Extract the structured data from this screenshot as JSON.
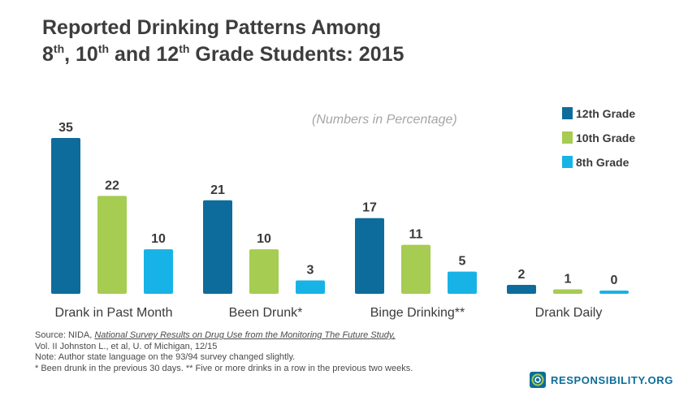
{
  "title": {
    "line1": "Reported Drinking Patterns Among",
    "g8": "8",
    "g8_sup": "th",
    "sep1": ", ",
    "g10": "10",
    "g10_sup": "th",
    "sep2": " and ",
    "g12": "12",
    "g12_sup": "th",
    "rest": " Grade Students: 2015"
  },
  "chart_data": {
    "type": "bar",
    "title": "Reported Drinking Patterns Among 8th, 10th and 12th Grade Students: 2015",
    "annotation": "(Numbers in Percentage)",
    "categories": [
      "Drank in Past Month",
      "Been Drunk*",
      "Binge Drinking**",
      "Drank Daily"
    ],
    "series": [
      {
        "name": "12th Grade",
        "color": "#0e6c9c",
        "values": [
          35,
          21,
          17,
          2
        ]
      },
      {
        "name": "10th Grade",
        "color": "#a6cc52",
        "values": [
          22,
          10,
          11,
          1
        ]
      },
      {
        "name": "8th Grade",
        "color": "#17b3e6",
        "values": [
          10,
          3,
          5,
          0
        ]
      }
    ],
    "ylim": [
      0,
      35
    ],
    "grid": false,
    "legend": "right"
  },
  "footer": {
    "line1_prefix": "Source: NIDA, ",
    "line1_title": "National Survey Results on Drug Use from the Monitoring The Future Study,",
    "line2": "Vol. II Johnston L., et al, U. of Michigan, 12/15",
    "line3": "Note: Author state language on the 93/94 survey changed slightly.",
    "line4": "* Been drunk in the previous 30 days.  ** Five or more drinks in a row in the previous two weeks."
  },
  "brand": {
    "text": "RESPONSIBILITY.ORG",
    "icon": "responsibility-logo-icon"
  }
}
